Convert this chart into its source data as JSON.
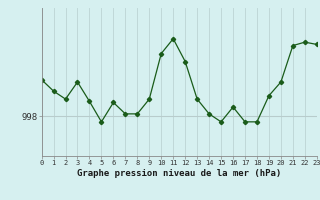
{
  "x": [
    0,
    1,
    2,
    3,
    4,
    5,
    6,
    7,
    8,
    9,
    10,
    11,
    12,
    13,
    14,
    15,
    16,
    17,
    18,
    19,
    20,
    21,
    22,
    23
  ],
  "y": [
    1001.2,
    1000.2,
    999.5,
    1001.0,
    999.3,
    997.5,
    999.2,
    998.2,
    998.2,
    999.5,
    1003.5,
    1004.8,
    1002.8,
    999.5,
    998.2,
    997.5,
    998.8,
    997.5,
    997.5,
    999.8,
    1001.0,
    1004.2,
    1004.5,
    1004.3
  ],
  "ylabel_val": 998,
  "line_color": "#1a5c1a",
  "marker": "D",
  "marker_size": 2.2,
  "bg_color": "#d6f0f0",
  "plot_bg_color": "#d6f0f0",
  "grid_color_v": "#c0d8d8",
  "grid_color_h": "#b8cccc",
  "xlabel": "Graphe pression niveau de la mer (hPa)",
  "xtick_labels": [
    "0",
    "1",
    "2",
    "3",
    "4",
    "5",
    "6",
    "7",
    "8",
    "9",
    "10",
    "11",
    "12",
    "13",
    "14",
    "15",
    "16",
    "17",
    "18",
    "19",
    "20",
    "21",
    "22",
    "23"
  ],
  "ylim": [
    994.5,
    1007.5
  ],
  "xlim": [
    0,
    23
  ]
}
